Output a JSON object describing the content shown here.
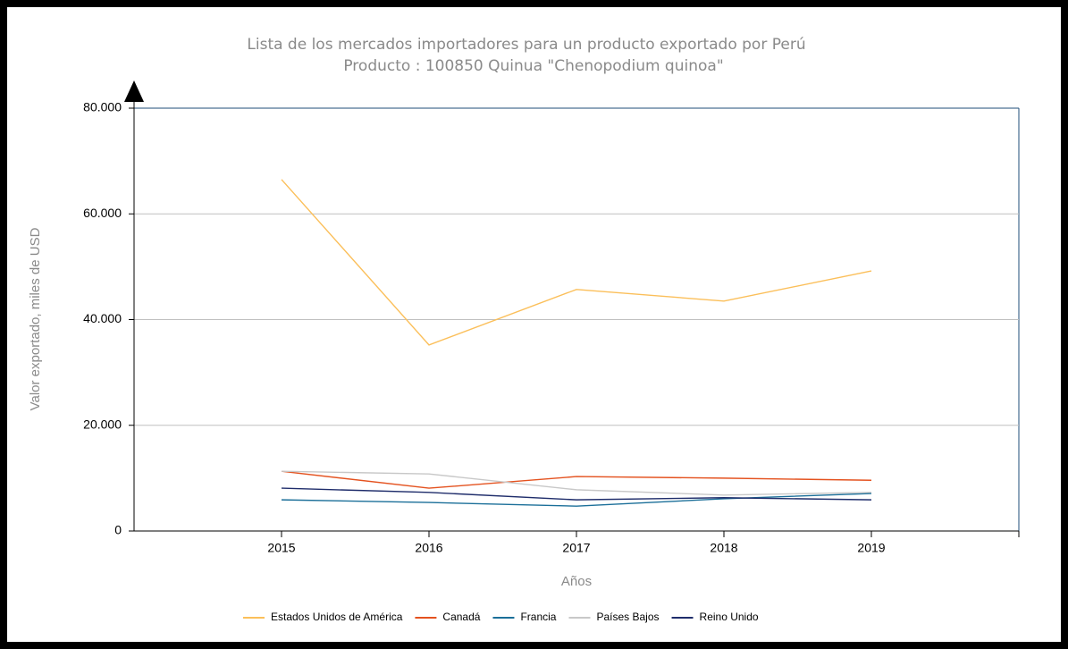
{
  "chart_data": {
    "type": "line",
    "title": "Lista de los mercados importadores para un producto exportado por Perú",
    "subtitle": "Producto : 100850 Quinua \"Chenopodium quinoa\"",
    "x_label": "Años",
    "y_label": "Valor exportado, miles de USD",
    "x": [
      2015,
      2016,
      2017,
      2018,
      2019
    ],
    "xlim": [
      2014,
      2020
    ],
    "xticks": [
      2015,
      2016,
      2017,
      2018,
      2019
    ],
    "ylim": [
      0,
      80000
    ],
    "yticks": [
      0,
      {
        "value": 20000,
        "label": "20.000"
      },
      {
        "value": 40000,
        "label": "40.000"
      },
      {
        "value": 60000,
        "label": "60.000"
      },
      {
        "value": 80000,
        "label": "80.000"
      }
    ],
    "grid": true,
    "legend": "bottom",
    "series": [
      {
        "name": "Estados Unidos de América",
        "color": "#fbbf5a",
        "values": [
          66500,
          35200,
          45700,
          43500,
          49200
        ]
      },
      {
        "name": "Canadá",
        "color": "#e4521f",
        "values": [
          11300,
          8100,
          10300,
          10000,
          9600
        ]
      },
      {
        "name": "Francia",
        "color": "#1b6f99",
        "values": [
          5900,
          5400,
          4700,
          6100,
          7100
        ]
      },
      {
        "name": "Países Bajos",
        "color": "#c8c8c8",
        "values": [
          11300,
          10800,
          7800,
          6800,
          7300
        ]
      },
      {
        "name": "Reino Unido",
        "color": "#1f2d6b",
        "values": [
          8100,
          7300,
          5900,
          6300,
          5900
        ]
      }
    ]
  }
}
